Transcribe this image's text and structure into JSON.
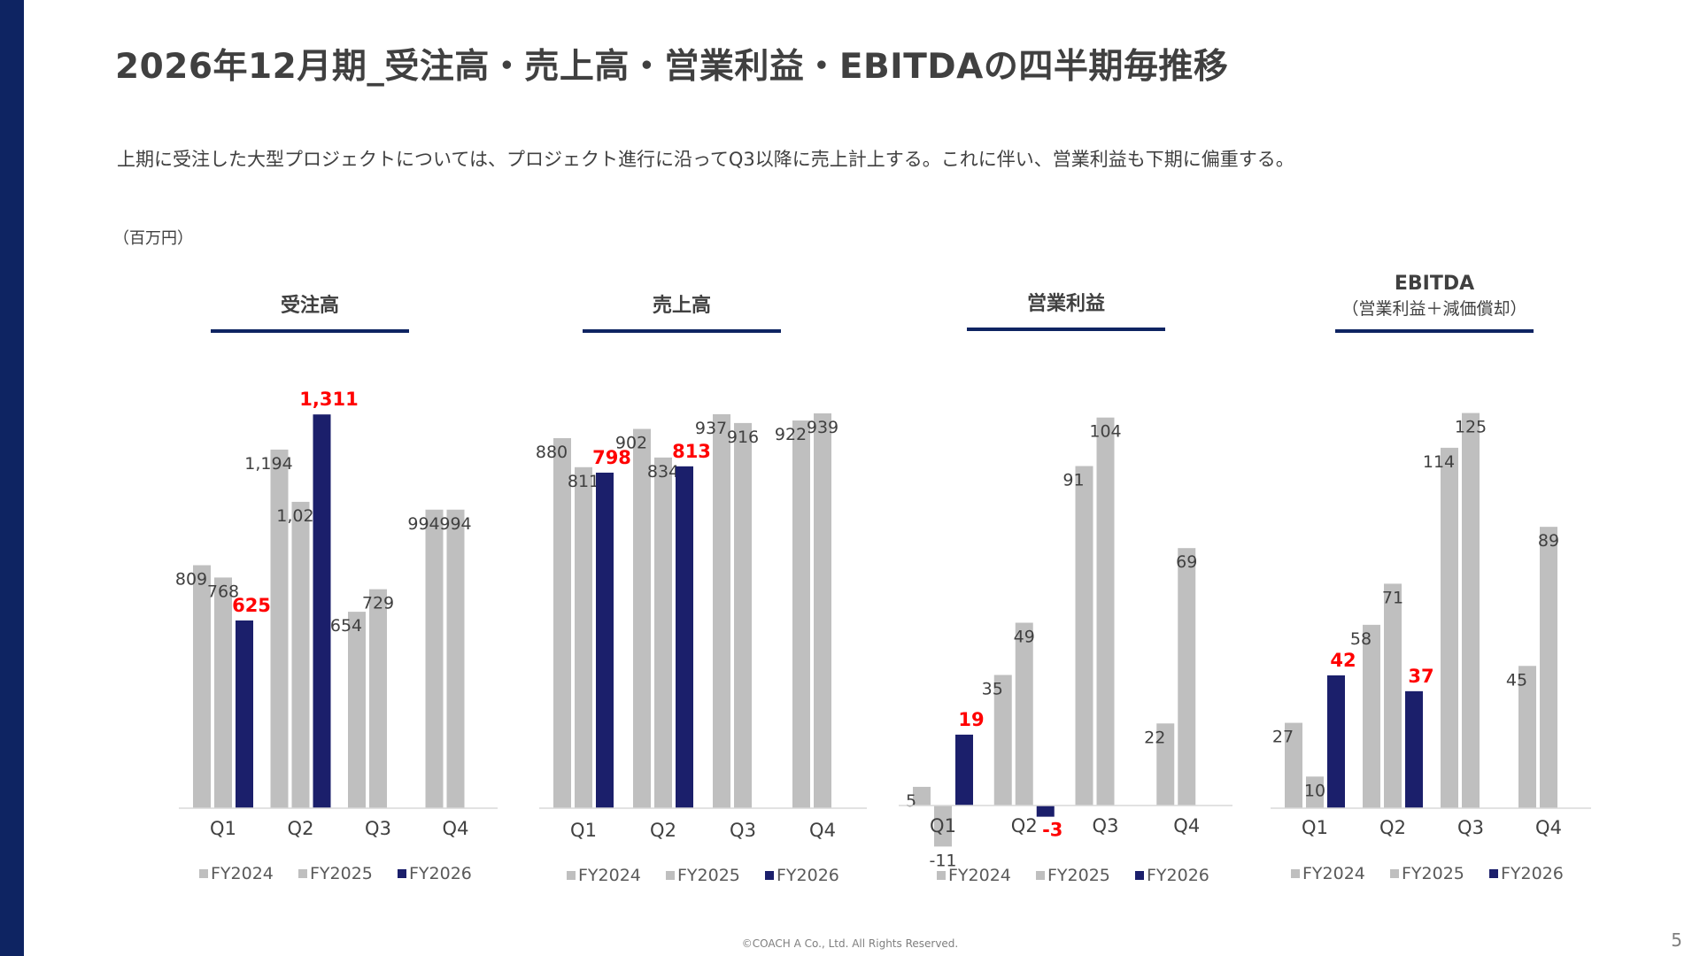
{
  "title": "2026年12月期_受注高・売上高・営業利益・EBITDAの四半期毎推移",
  "subtitle": "上期に受注した大型プロジェクトについては、プロジェクト進行に沿ってQ3以降に売上計上する。これに伴い、営業利益も下期に偏重する。",
  "unit": "（百万円）",
  "footer": "©COACH A Co., Ltd. All Rights Reserved.",
  "page_number": "5",
  "colors": {
    "fy2024": "#bfbfbf",
    "fy2025": "#bfbfbf",
    "fy2026": "#1b1f6b",
    "highlight": "#ff0000",
    "accent": "#0e2462"
  },
  "chart_data": [
    {
      "type": "bar",
      "title": "受注高",
      "subtitle": "",
      "categories": [
        "Q1",
        "Q2",
        "Q3",
        "Q4"
      ],
      "series": [
        {
          "name": "FY2024",
          "values": [
            809,
            1194,
            654,
            994
          ]
        },
        {
          "name": "FY2025",
          "values": [
            768,
            1020,
            729,
            994
          ]
        },
        {
          "name": "FY2026",
          "values": [
            625,
            1311,
            null,
            null
          ]
        }
      ],
      "ylim": [
        0,
        1400
      ],
      "legend": "bottom",
      "grid": false
    },
    {
      "type": "bar",
      "title": "売上高",
      "subtitle": "",
      "categories": [
        "Q1",
        "Q2",
        "Q3",
        "Q4"
      ],
      "series": [
        {
          "name": "FY2024",
          "values": [
            880,
            902,
            937,
            922
          ]
        },
        {
          "name": "FY2025",
          "values": [
            811,
            834,
            916,
            939
          ]
        },
        {
          "name": "FY2026",
          "values": [
            798,
            813,
            null,
            null
          ]
        }
      ],
      "ylim": [
        0,
        1000
      ],
      "legend": "bottom",
      "grid": false
    },
    {
      "type": "bar",
      "title": "営業利益",
      "subtitle": "",
      "categories": [
        "Q1",
        "Q2",
        "Q3",
        "Q4"
      ],
      "series": [
        {
          "name": "FY2024",
          "values": [
            5,
            35,
            91,
            22
          ]
        },
        {
          "name": "FY2025",
          "values": [
            -11,
            49,
            104,
            69
          ]
        },
        {
          "name": "FY2026",
          "values": [
            19,
            -3,
            null,
            null
          ]
        }
      ],
      "ylim": [
        -12,
        112
      ],
      "legend": "bottom",
      "grid": false
    },
    {
      "type": "bar",
      "title": "EBITDA",
      "subtitle": "（営業利益＋減価償却）",
      "categories": [
        "Q1",
        "Q2",
        "Q3",
        "Q4"
      ],
      "series": [
        {
          "name": "FY2024",
          "values": [
            27,
            58,
            114,
            45
          ]
        },
        {
          "name": "FY2025",
          "values": [
            10,
            71,
            125,
            89
          ]
        },
        {
          "name": "FY2026",
          "values": [
            42,
            37,
            null,
            null
          ]
        }
      ],
      "ylim": [
        0,
        133
      ],
      "legend": "bottom",
      "grid": false
    }
  ]
}
